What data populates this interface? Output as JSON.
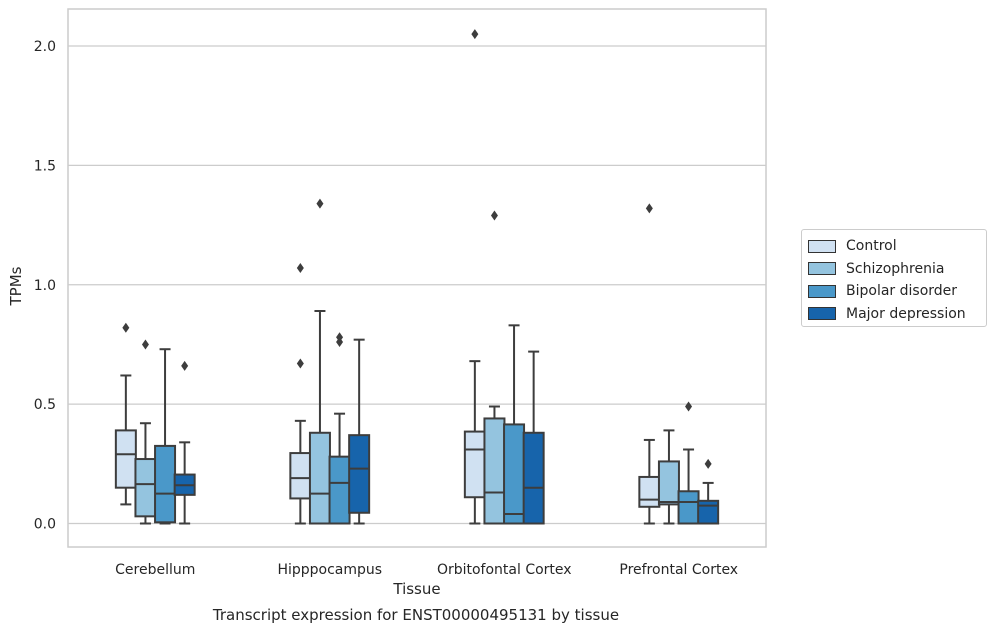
{
  "chart_data": {
    "type": "box",
    "title": "",
    "caption": "Transcript expression for ENST00000495131 by tissue",
    "xlabel": "Tissue",
    "ylabel": "TPMs",
    "ylim": [
      -0.1,
      2.16
    ],
    "yticks": [
      "0.0",
      "0.5",
      "1.0",
      "1.5",
      "2.0"
    ],
    "grid": "horizontal",
    "legend_position": "right",
    "categories": [
      "Cerebellum",
      "Hipppocampus",
      "Orbitofontal Cortex",
      "Prefrontal Cortex"
    ],
    "series": [
      {
        "name": "Control",
        "color": "#d0e1f2",
        "boxes": [
          {
            "whisker_low": 0.08,
            "q1": 0.15,
            "median": 0.29,
            "q3": 0.39,
            "whisker_high": 0.62,
            "outliers": [
              0.82
            ]
          },
          {
            "whisker_low": 0.0,
            "q1": 0.105,
            "median": 0.19,
            "q3": 0.295,
            "whisker_high": 0.43,
            "outliers": [
              0.67,
              1.07
            ]
          },
          {
            "whisker_low": 0.0,
            "q1": 0.11,
            "median": 0.31,
            "q3": 0.385,
            "whisker_high": 0.68,
            "outliers": [
              2.05
            ]
          },
          {
            "whisker_low": 0.0,
            "q1": 0.07,
            "median": 0.1,
            "q3": 0.195,
            "whisker_high": 0.35,
            "outliers": [
              1.32
            ]
          }
        ]
      },
      {
        "name": "Schizophrenia",
        "color": "#94c4df",
        "boxes": [
          {
            "whisker_low": 0.0,
            "q1": 0.03,
            "median": 0.165,
            "q3": 0.27,
            "whisker_high": 0.42,
            "outliers": [
              0.75
            ]
          },
          {
            "whisker_low": 0.0,
            "q1": 0.0,
            "median": 0.125,
            "q3": 0.38,
            "whisker_high": 0.89,
            "outliers": [
              1.34
            ]
          },
          {
            "whisker_low": 0.0,
            "q1": 0.0,
            "median": 0.13,
            "q3": 0.44,
            "whisker_high": 0.49,
            "outliers": [
              1.29
            ]
          },
          {
            "whisker_low": 0.0,
            "q1": 0.08,
            "median": 0.09,
            "q3": 0.26,
            "whisker_high": 0.39,
            "outliers": []
          }
        ]
      },
      {
        "name": "Bipolar disorder",
        "color": "#4a98c9",
        "boxes": [
          {
            "whisker_low": 0.0,
            "q1": 0.005,
            "median": 0.125,
            "q3": 0.325,
            "whisker_high": 0.73,
            "outliers": []
          },
          {
            "whisker_low": 0.0,
            "q1": 0.0,
            "median": 0.17,
            "q3": 0.28,
            "whisker_high": 0.46,
            "outliers": [
              0.76,
              0.78
            ]
          },
          {
            "whisker_low": 0.0,
            "q1": 0.0,
            "median": 0.04,
            "q3": 0.415,
            "whisker_high": 0.83,
            "outliers": []
          },
          {
            "whisker_low": 0.0,
            "q1": 0.0,
            "median": 0.09,
            "q3": 0.135,
            "whisker_high": 0.31,
            "outliers": [
              0.49
            ]
          }
        ]
      },
      {
        "name": "Major depression",
        "color": "#1764ab",
        "boxes": [
          {
            "whisker_low": 0.0,
            "q1": 0.12,
            "median": 0.16,
            "q3": 0.205,
            "whisker_high": 0.34,
            "outliers": [
              0.66
            ]
          },
          {
            "whisker_low": 0.0,
            "q1": 0.045,
            "median": 0.23,
            "q3": 0.37,
            "whisker_high": 0.77,
            "outliers": []
          },
          {
            "whisker_low": 0.0,
            "q1": 0.0,
            "median": 0.15,
            "q3": 0.38,
            "whisker_high": 0.72,
            "outliers": []
          },
          {
            "whisker_low": 0.0,
            "q1": 0.0,
            "median": 0.075,
            "q3": 0.095,
            "whisker_high": 0.17,
            "outliers": [
              0.25
            ]
          }
        ]
      }
    ]
  }
}
